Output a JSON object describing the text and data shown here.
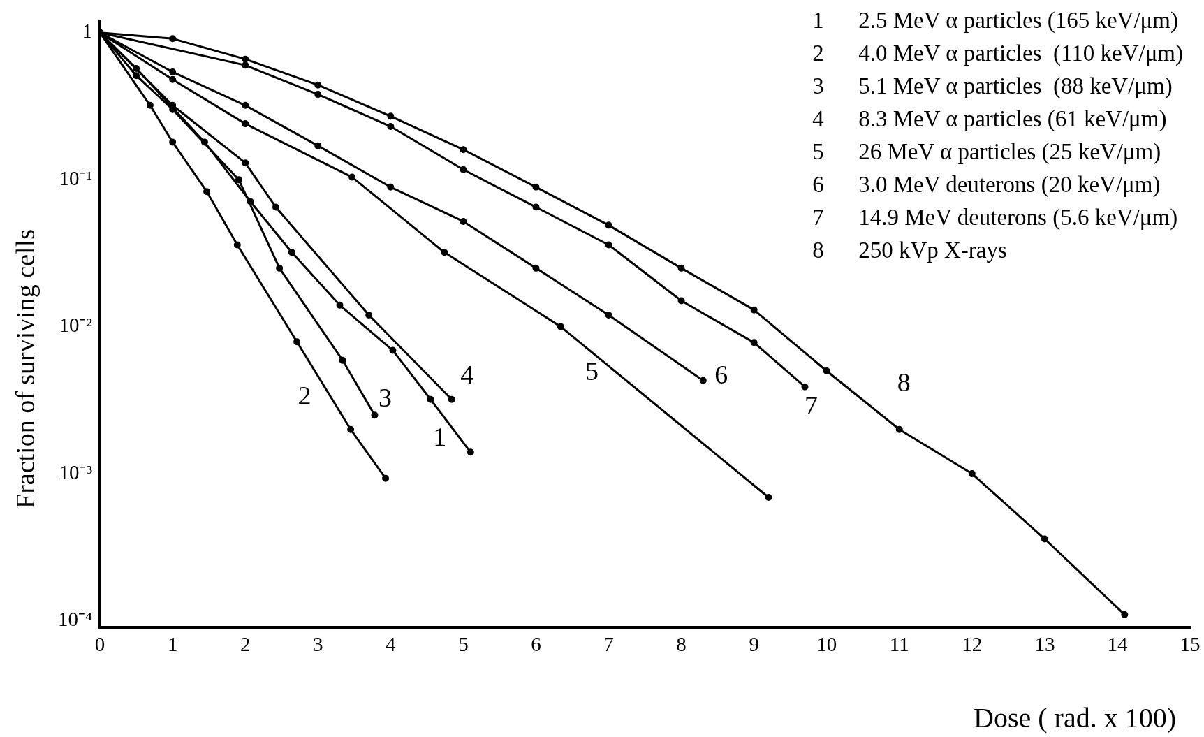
{
  "chart_data": {
    "type": "line",
    "xlabel": "Dose ( rad. x 100)",
    "ylabel": "Fraction of surviving cells",
    "log": "y",
    "grid": false,
    "marker": "circle",
    "line_style": "solid",
    "xlim": [
      0,
      15
    ],
    "xticks": [
      0,
      1,
      2,
      3,
      4,
      5,
      6,
      7,
      8,
      9,
      10,
      11,
      12,
      13,
      14,
      15
    ],
    "ylim": [
      9e-05,
      1.2
    ],
    "yticks": [
      {
        "value": 1,
        "label": "1"
      },
      {
        "value": 0.1,
        "label": "10⁻¹"
      },
      {
        "value": 0.01,
        "label": "10⁻²"
      },
      {
        "value": 0.001,
        "label": "10⁻³"
      },
      {
        "value": 0.0001,
        "label": "10⁻⁴"
      }
    ],
    "series": [
      {
        "name": "1 2.5 MeV α particles (165 keV/μm)",
        "color": "#000000",
        "x": [
          0,
          0.5,
          1.44,
          2.07,
          2.64,
          3.3,
          4.03,
          4.55,
          5.1
        ],
        "values": [
          1,
          0.57,
          0.18,
          0.071,
          0.032,
          0.014,
          0.0069,
          0.0032,
          0.0014
        ]
      },
      {
        "name": "2 4.0 MeV α particles  (110 keV/μm)",
        "color": "#000000",
        "x": [
          0,
          0.69,
          1.0,
          1.47,
          1.89,
          2.71,
          3.45,
          3.93
        ],
        "values": [
          1,
          0.32,
          0.18,
          0.083,
          0.036,
          0.0079,
          0.002,
          0.00093
        ]
      },
      {
        "name": "3 5.1 MeV α particles  (88 keV/μm)",
        "color": "#000000",
        "x": [
          0,
          0.5,
          1,
          1.91,
          2.47,
          3.34,
          3.78
        ],
        "values": [
          1,
          0.51,
          0.3,
          0.1,
          0.025,
          0.0059,
          0.0025
        ]
      },
      {
        "name": "4 8.3 MeV α particles (61 keV/μm)",
        "color": "#000000",
        "x": [
          0,
          1,
          2,
          2.42,
          3.7,
          4.84
        ],
        "values": [
          1,
          0.32,
          0.13,
          0.065,
          0.012,
          0.0032
        ]
      },
      {
        "name": "5 26 MeV α particles (25 keV/μm)",
        "color": "#000000",
        "x": [
          0,
          1,
          2,
          3.47,
          4.74,
          6.34,
          9.2
        ],
        "values": [
          1,
          0.48,
          0.24,
          0.104,
          0.032,
          0.01,
          0.00069
        ]
      },
      {
        "name": "6 3.0 MeV deuterons (20 keV/μm)",
        "color": "#000000",
        "x": [
          0,
          1,
          2,
          3,
          4,
          5,
          6,
          7,
          8.3
        ],
        "values": [
          1,
          0.54,
          0.32,
          0.17,
          0.089,
          0.052,
          0.025,
          0.012,
          0.0043
        ]
      },
      {
        "name": "7 14.9 MeV deuterons (5.6 keV/μm)",
        "color": "#000000",
        "x": [
          0,
          2,
          3,
          4,
          5,
          6,
          7,
          8,
          9,
          9.7
        ],
        "values": [
          1,
          0.6,
          0.38,
          0.23,
          0.117,
          0.065,
          0.036,
          0.015,
          0.0078,
          0.0039
        ]
      },
      {
        "name": "8 250 kVp X-rays",
        "color": "#000000",
        "x": [
          0,
          1,
          2,
          3,
          4,
          5,
          6,
          7,
          8,
          9,
          10,
          11,
          12,
          13,
          14.1
        ],
        "values": [
          1,
          0.91,
          0.66,
          0.44,
          0.27,
          0.16,
          0.089,
          0.049,
          0.025,
          0.013,
          0.005,
          0.002,
          0.001,
          0.00036,
          0.00011
        ]
      }
    ],
    "annotations": [
      "1",
      "2",
      "3",
      "4",
      "5",
      "6",
      "7",
      "8"
    ]
  }
}
